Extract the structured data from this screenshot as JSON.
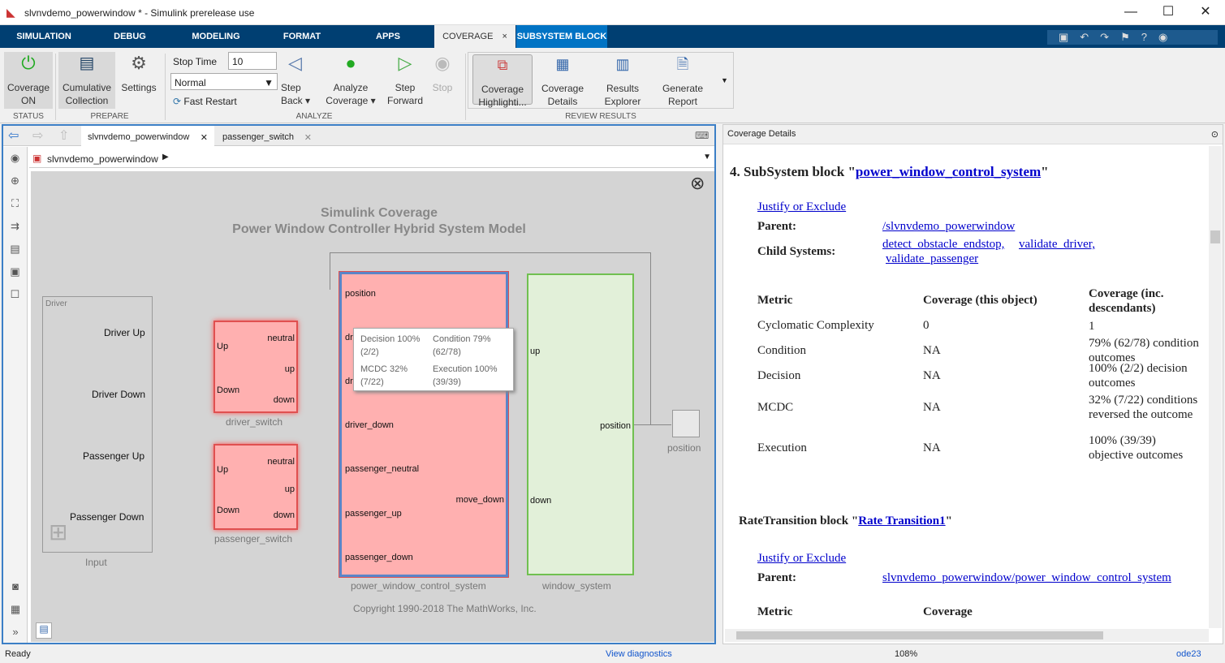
{
  "window": {
    "title": "slvnvdemo_powerwindow * - Simulink prerelease use"
  },
  "tabs": [
    "SIMULATION",
    "DEBUG",
    "MODELING",
    "FORMAT",
    "APPS",
    "COVERAGE",
    "SUBSYSTEM BLOCK"
  ],
  "ribbon": {
    "coverage_on": "Coverage ON",
    "cumulative": "Cumulative Collection",
    "settings": "Settings",
    "stop_time_label": "Stop Time",
    "stop_time_value": "10",
    "sim_mode": "Normal",
    "fast_restart": "Fast Restart",
    "step_back": "Step Back",
    "analyze": "Analyze Coverage",
    "step_forward": "Step Forward",
    "stop": "Stop",
    "highlight": "Coverage Highlighti...",
    "details": "Coverage Details",
    "explorer": "Results Explorer",
    "report": "Generate Report",
    "sections": {
      "status": "STATUS",
      "prepare": "PREPARE",
      "analyze": "ANALYZE",
      "review": "REVIEW RESULTS"
    }
  },
  "editor": {
    "tabs": [
      "slvnvdemo_powerwindow",
      "passenger_switch"
    ],
    "breadcrumb": "slvnvdemo_powerwindow"
  },
  "model": {
    "title1": "Simulink Coverage",
    "title2": "Power Window Controller Hybrid System Model",
    "driver_area": "Driver",
    "input_label": "Input",
    "inputs": [
      "Driver Up",
      "Driver Down",
      "Passenger Up",
      "Passenger Down"
    ],
    "switch_ports": {
      "up": "Up",
      "down": "Down",
      "neutral": "neutral",
      "oup": "up",
      "odown": "down"
    },
    "driver_switch": "driver_switch",
    "passenger_switch": "passenger_switch",
    "ctrl_ports": [
      "position",
      "dri",
      "dri",
      "driver_down",
      "passenger_neutral",
      "passenger_up",
      "passenger_down"
    ],
    "ctrl_out": "move_down",
    "ctrl_name": "power_window_control_system",
    "win_ports": {
      "up": "up",
      "down": "down",
      "position": "position"
    },
    "win_name": "window_system",
    "scope": "position",
    "copyright": "Copyright 1990-2018 The MathWorks, Inc.",
    "tooltip": {
      "decision": "Decision 100%",
      "decision_n": "(2/2)",
      "condition": "Condition 79%",
      "condition_n": "(62/78)",
      "mcdc": "MCDC 32%",
      "mcdc_n": "(7/22)",
      "execution": "Execution 100%",
      "execution_n": "(39/39)"
    }
  },
  "details": {
    "panel_title": "Coverage Details",
    "h1_prefix": "4. SubSystem block \"",
    "h1_link": "power_window_control_system",
    "h1_suffix": "\"",
    "justify": "Justify or Exclude",
    "parent_label": "Parent:",
    "parent": "/slvnvdemo_powerwindow",
    "child_label": "Child Systems:",
    "children": [
      "detect_obstacle_endstop,",
      "validate_driver,",
      "validate_passenger"
    ],
    "headers": [
      "Metric",
      "Coverage (this object)",
      "Coverage (inc. descendants)"
    ],
    "rows": [
      {
        "m": "Cyclomatic Complexity",
        "t": "0",
        "d": "1"
      },
      {
        "m": "Condition",
        "t": "NA",
        "d": "79% (62/78) condition outcomes"
      },
      {
        "m": "Decision",
        "t": "NA",
        "d": "100% (2/2) decision outcomes"
      },
      {
        "m": "MCDC",
        "t": "NA",
        "d": "32% (7/22) conditions reversed the outcome"
      },
      {
        "m": "Execution",
        "t": "NA",
        "d": "100% (39/39) objective outcomes"
      }
    ],
    "h2_prefix": "RateTransition block \"",
    "h2_link": "Rate Transition1",
    "h2_suffix": "\"",
    "justify2": "Justify or Exclude",
    "parent2": "slvnvdemo_powerwindow/power_window_control_system",
    "headers2": [
      "Metric",
      "Coverage"
    ]
  },
  "status": {
    "left": "Ready",
    "diag": "View diagnostics",
    "zoom": "108%",
    "solver": "ode23"
  }
}
